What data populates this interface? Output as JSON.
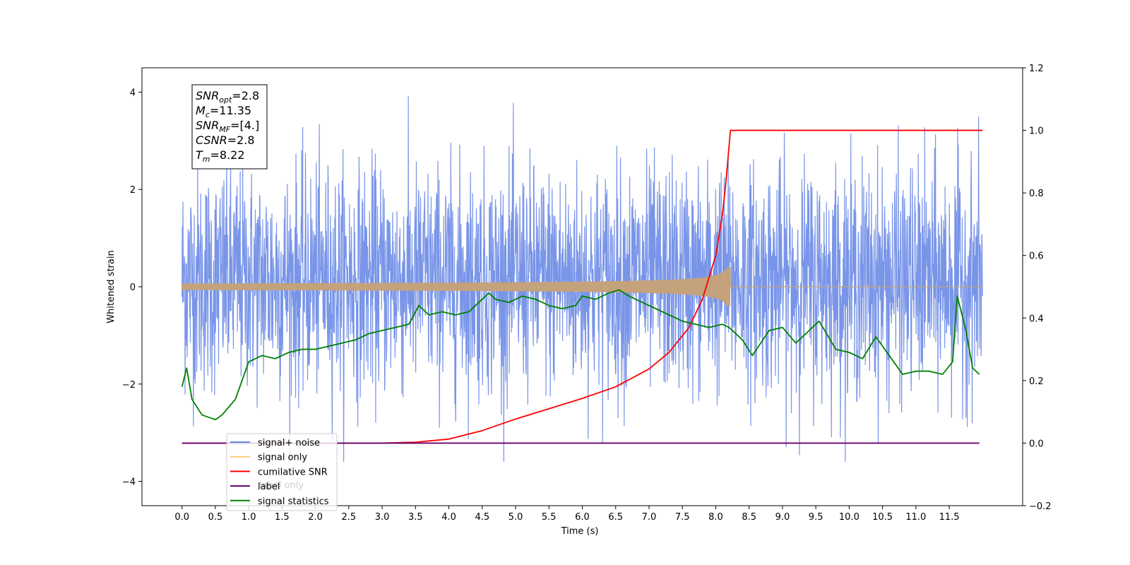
{
  "chart_data": {
    "type": "line",
    "xlabel": "Time (s)",
    "ylabel": "Whitened strain",
    "xlim": [
      -0.6,
      12.6
    ],
    "ylim_left": [
      -4.5,
      4.5
    ],
    "ylim_right": [
      -0.2,
      1.2
    ],
    "x_ticks": [
      "0.0",
      "0.5",
      "1.0",
      "1.5",
      "2.0",
      "2.5",
      "3.0",
      "3.5",
      "4.0",
      "4.5",
      "5.0",
      "5.5",
      "6.0",
      "6.5",
      "7.0",
      "7.5",
      "8.0",
      "8.5",
      "9.0",
      "9.5",
      "10.0",
      "10.5",
      "11.0",
      "11.5"
    ],
    "y_left_ticks": [
      "−4",
      "−2",
      "0",
      "2",
      "4"
    ],
    "y_right_ticks": [
      "−0.2",
      "0.0",
      "0.2",
      "0.4",
      "0.6",
      "0.8",
      "1.0",
      "1.2"
    ],
    "annotation": {
      "lines": [
        {
          "main": "SNR",
          "sub": "opt",
          "rest": "=2.8"
        },
        {
          "main": "M",
          "sub": "c",
          "rest": "=11.35"
        },
        {
          "main": "SNR",
          "sub": "MF",
          "rest": "=[4.]"
        },
        {
          "main": "CSNR",
          "sub": "",
          "rest": "=2.8"
        },
        {
          "main": "T",
          "sub": "m",
          "rest": "=8.22"
        }
      ]
    },
    "legend": {
      "placement": "lower-left",
      "entries": [
        {
          "label": "signal+ noise",
          "color": "#6a8ae6"
        },
        {
          "label": "signal only",
          "color": "#ffc87a"
        },
        {
          "label": "cumilative SNR",
          "color": "#ff0000"
        },
        {
          "label": "label",
          "color": "#6a006a"
        },
        {
          "label": "signal statistics",
          "color": "#008000"
        }
      ]
    },
    "behind_legend_text": "label only",
    "series": [
      {
        "name": "signal+ noise",
        "axis": "left",
        "color": "#6a8ae6",
        "kind": "gaussian-noise",
        "x_range": [
          0.0,
          12.0
        ],
        "mean": 0.15,
        "std": 1.15,
        "observed_max": 4.1,
        "observed_min": -3.6
      },
      {
        "name": "signal only",
        "axis": "left",
        "color": "#c4a27c",
        "kind": "chirp",
        "x_range": [
          0.0,
          12.0
        ],
        "merger_time": 8.22,
        "peak_amplitude": 0.4
      },
      {
        "name": "cumilative SNR",
        "axis": "right",
        "color": "#ff0000",
        "x": [
          0.0,
          2.5,
          3.0,
          3.5,
          4.0,
          4.5,
          5.0,
          5.5,
          6.0,
          6.5,
          7.0,
          7.3,
          7.6,
          7.8,
          8.0,
          8.1,
          8.15,
          8.2,
          8.22,
          12.0
        ],
        "y": [
          0.0,
          0.0,
          0.0,
          0.003,
          0.013,
          0.04,
          0.077,
          0.11,
          0.143,
          0.18,
          0.237,
          0.29,
          0.37,
          0.46,
          0.6,
          0.73,
          0.83,
          0.95,
          1.0,
          1.0
        ]
      },
      {
        "name": "label",
        "axis": "right",
        "color": "#6a006a",
        "x": [
          0.0,
          11.95
        ],
        "y": [
          0.0,
          0.0
        ]
      },
      {
        "name": "signal statistics",
        "axis": "right",
        "color": "#008000",
        "x": [
          0.0,
          0.07,
          0.15,
          0.3,
          0.5,
          0.6,
          0.8,
          1.0,
          1.2,
          1.4,
          1.6,
          1.8,
          2.0,
          2.2,
          2.4,
          2.6,
          2.8,
          3.0,
          3.2,
          3.4,
          3.55,
          3.7,
          3.9,
          4.1,
          4.3,
          4.5,
          4.6,
          4.7,
          4.9,
          5.1,
          5.3,
          5.5,
          5.7,
          5.9,
          6.0,
          6.2,
          6.4,
          6.55,
          6.7,
          6.9,
          7.1,
          7.3,
          7.5,
          7.7,
          7.9,
          8.1,
          8.2,
          8.4,
          8.55,
          8.8,
          9.0,
          9.2,
          9.4,
          9.55,
          9.8,
          10.0,
          10.2,
          10.4,
          10.6,
          10.8,
          11.0,
          11.2,
          11.4,
          11.55,
          11.62,
          11.75,
          11.85,
          11.95
        ],
        "y": [
          0.18,
          0.24,
          0.14,
          0.09,
          0.075,
          0.09,
          0.14,
          0.26,
          0.28,
          0.27,
          0.29,
          0.3,
          0.3,
          0.31,
          0.32,
          0.33,
          0.35,
          0.36,
          0.37,
          0.38,
          0.44,
          0.41,
          0.42,
          0.41,
          0.42,
          0.46,
          0.48,
          0.46,
          0.45,
          0.47,
          0.46,
          0.44,
          0.43,
          0.44,
          0.47,
          0.46,
          0.48,
          0.49,
          0.47,
          0.45,
          0.43,
          0.41,
          0.39,
          0.38,
          0.37,
          0.38,
          0.37,
          0.33,
          0.28,
          0.36,
          0.37,
          0.32,
          0.36,
          0.39,
          0.3,
          0.29,
          0.27,
          0.34,
          0.28,
          0.22,
          0.23,
          0.23,
          0.22,
          0.26,
          0.47,
          0.36,
          0.24,
          0.22
        ]
      }
    ]
  }
}
